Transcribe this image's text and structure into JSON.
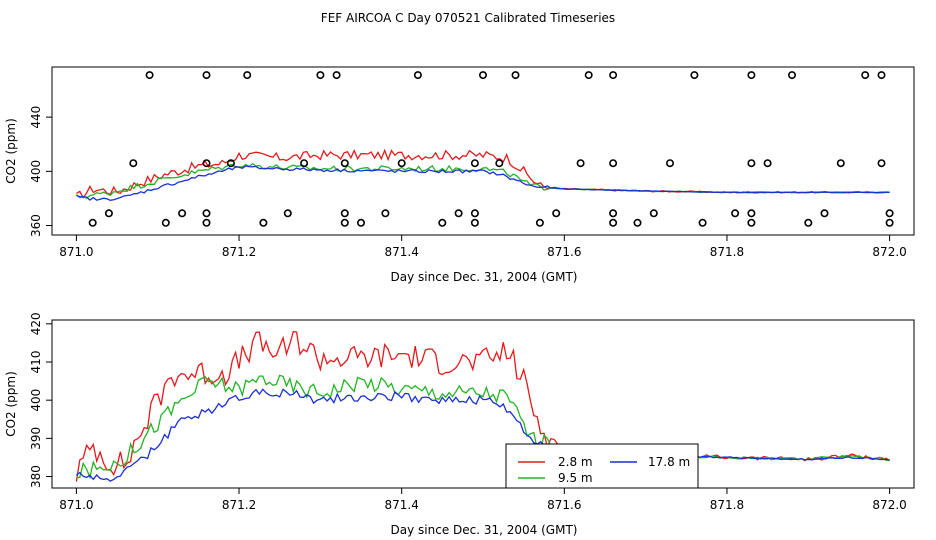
{
  "page_title": "FEF AIRCOA C  Day 070521  Calibrated Timeseries",
  "colors": {
    "red": "#e31a1c",
    "green": "#22b422",
    "blue": "#1a2fd6",
    "axis": "#000000"
  },
  "chart_data": [
    {
      "type": "line",
      "title": "FEF AIRCOA C  Day 070521  Calibrated Timeseries",
      "xlabel": "Day since Dec. 31, 2004 (GMT)",
      "ylabel": "CO2 (ppm)",
      "xlim": [
        870.97,
        872.03
      ],
      "ylim": [
        353,
        477
      ],
      "x_ticks": [
        871.0,
        871.2,
        871.4,
        871.6,
        871.8,
        872.0
      ],
      "x_tick_labels": [
        "871.0",
        "871.2",
        "871.4",
        "871.6",
        "871.8",
        "872.0"
      ],
      "y_ticks": [
        360,
        400,
        440
      ],
      "y_tick_labels": [
        "360",
        "400",
        "440"
      ],
      "series": [
        {
          "name": "2.8 m",
          "color": "#e31a1c",
          "knots": [
            [
              871.0,
              381
            ],
            [
              871.02,
              387
            ],
            [
              871.05,
              385
            ],
            [
              871.08,
              392
            ],
            [
              871.11,
              398
            ],
            [
              871.15,
              404
            ],
            [
              871.18,
              406
            ],
            [
              871.2,
              412
            ],
            [
              871.25,
              410
            ],
            [
              871.3,
              412
            ],
            [
              871.4,
              412
            ],
            [
              871.5,
              412
            ],
            [
              871.53,
              410
            ],
            [
              871.55,
              400
            ],
            [
              871.57,
              389
            ],
            [
              871.6,
              387
            ],
            [
              871.7,
              385.5
            ],
            [
              871.8,
              384.5
            ],
            [
              872.0,
              384.5
            ]
          ],
          "noise": 3.5
        },
        {
          "name": "9.5 m",
          "color": "#22b422",
          "knots": [
            [
              871.0,
              381
            ],
            [
              871.04,
              384
            ],
            [
              871.08,
              390
            ],
            [
              871.12,
              396
            ],
            [
              871.16,
              401
            ],
            [
              871.2,
              405
            ],
            [
              871.25,
              403
            ],
            [
              871.3,
              402
            ],
            [
              871.4,
              402
            ],
            [
              871.5,
              402
            ],
            [
              871.53,
              399
            ],
            [
              871.56,
              389
            ],
            [
              871.6,
              387
            ],
            [
              871.7,
              385.5
            ],
            [
              871.8,
              384.5
            ],
            [
              872.0,
              384.5
            ]
          ],
          "noise": 2.2
        },
        {
          "name": "17.8 m",
          "color": "#1a2fd6",
          "knots": [
            [
              871.0,
              381
            ],
            [
              871.03,
              379
            ],
            [
              871.06,
              381
            ],
            [
              871.1,
              388
            ],
            [
              871.15,
              396
            ],
            [
              871.2,
              403
            ],
            [
              871.25,
              402
            ],
            [
              871.3,
              401
            ],
            [
              871.4,
              400
            ],
            [
              871.5,
              400
            ],
            [
              871.52,
              398
            ],
            [
              871.56,
              389
            ],
            [
              871.6,
              387
            ],
            [
              871.7,
              385.5
            ],
            [
              871.8,
              384.5
            ],
            [
              872.0,
              384.5
            ]
          ],
          "noise": 1.2
        }
      ],
      "markers": {
        "type": "scatter",
        "shape": "open-circle",
        "points": [
          [
            871.09,
            471
          ],
          [
            871.16,
            471
          ],
          [
            871.21,
            471
          ],
          [
            871.3,
            471
          ],
          [
            871.32,
            471
          ],
          [
            871.42,
            471
          ],
          [
            871.5,
            471
          ],
          [
            871.54,
            471
          ],
          [
            871.63,
            471
          ],
          [
            871.66,
            471
          ],
          [
            871.76,
            471
          ],
          [
            871.83,
            471
          ],
          [
            871.88,
            471
          ],
          [
            871.97,
            471
          ],
          [
            871.99,
            471
          ],
          [
            871.07,
            406
          ],
          [
            871.16,
            406
          ],
          [
            871.19,
            406
          ],
          [
            871.28,
            406
          ],
          [
            871.33,
            406
          ],
          [
            871.4,
            406
          ],
          [
            871.49,
            406
          ],
          [
            871.52,
            406
          ],
          [
            871.62,
            406
          ],
          [
            871.66,
            406
          ],
          [
            871.73,
            406
          ],
          [
            871.83,
            406
          ],
          [
            871.85,
            406
          ],
          [
            871.94,
            406
          ],
          [
            871.99,
            406
          ],
          [
            871.04,
            369
          ],
          [
            871.13,
            369
          ],
          [
            871.16,
            369
          ],
          [
            871.26,
            369
          ],
          [
            871.33,
            369
          ],
          [
            871.38,
            369
          ],
          [
            871.47,
            369
          ],
          [
            871.49,
            369
          ],
          [
            871.59,
            369
          ],
          [
            871.66,
            369
          ],
          [
            871.71,
            369
          ],
          [
            871.81,
            369
          ],
          [
            871.83,
            369
          ],
          [
            871.92,
            369
          ],
          [
            872.0,
            369
          ],
          [
            871.02,
            362
          ],
          [
            871.11,
            362
          ],
          [
            871.16,
            362
          ],
          [
            871.23,
            362
          ],
          [
            871.33,
            362
          ],
          [
            871.35,
            362
          ],
          [
            871.45,
            362
          ],
          [
            871.49,
            362
          ],
          [
            871.57,
            362
          ],
          [
            871.66,
            362
          ],
          [
            871.69,
            362
          ],
          [
            871.77,
            362
          ],
          [
            871.83,
            362
          ],
          [
            871.9,
            362
          ],
          [
            872.0,
            362
          ]
        ]
      }
    },
    {
      "type": "line",
      "xlabel": "Day since Dec. 31, 2004 (GMT)",
      "ylabel": "CO2 (ppm)",
      "xlim": [
        870.97,
        872.03
      ],
      "ylim": [
        377,
        421
      ],
      "x_ticks": [
        871.0,
        871.2,
        871.4,
        871.6,
        871.8,
        872.0
      ],
      "x_tick_labels": [
        "871.0",
        "871.2",
        "871.4",
        "871.6",
        "871.8",
        "872.0"
      ],
      "y_ticks": [
        380,
        390,
        400,
        410,
        420
      ],
      "y_tick_labels": [
        "380",
        "390",
        "400",
        "410",
        "420"
      ],
      "legend": {
        "position": "bottom-center",
        "entries": [
          {
            "label": "2.8 m",
            "color": "#e31a1c"
          },
          {
            "label": "17.8 m",
            "color": "#1a2fd6"
          },
          {
            "label": "9.5 m",
            "color": "#22b422"
          }
        ]
      },
      "series": [
        {
          "name": "2.8 m",
          "color": "#e31a1c",
          "knots": [
            [
              871.0,
              381
            ],
            [
              871.02,
              388
            ],
            [
              871.04,
              384
            ],
            [
              871.06,
              383
            ],
            [
              871.08,
              392
            ],
            [
              871.1,
              400
            ],
            [
              871.12,
              407
            ],
            [
              871.15,
              407
            ],
            [
              871.18,
              407
            ],
            [
              871.2,
              410
            ],
            [
              871.22,
              415
            ],
            [
              871.25,
              412
            ],
            [
              871.27,
              416
            ],
            [
              871.3,
              411
            ],
            [
              871.35,
              411
            ],
            [
              871.4,
              412
            ],
            [
              871.45,
              410
            ],
            [
              871.5,
              410
            ],
            [
              871.53,
              413
            ],
            [
              871.55,
              405
            ],
            [
              871.57,
              393
            ],
            [
              871.6,
              387
            ],
            [
              871.7,
              386
            ],
            [
              871.8,
              385
            ],
            [
              871.9,
              384.5
            ],
            [
              871.95,
              385.5
            ],
            [
              872.0,
              384.5
            ]
          ],
          "noise": 3.5
        },
        {
          "name": "9.5 m",
          "color": "#22b422",
          "knots": [
            [
              871.0,
              381
            ],
            [
              871.03,
              382
            ],
            [
              871.06,
              385
            ],
            [
              871.1,
              394
            ],
            [
              871.13,
              400
            ],
            [
              871.16,
              405
            ],
            [
              871.2,
              403
            ],
            [
              871.23,
              406
            ],
            [
              871.26,
              404
            ],
            [
              871.3,
              402
            ],
            [
              871.35,
              405
            ],
            [
              871.4,
              403
            ],
            [
              871.45,
              402
            ],
            [
              871.5,
              402
            ],
            [
              871.53,
              401
            ],
            [
              871.56,
              390
            ],
            [
              871.6,
              387
            ],
            [
              871.7,
              385.5
            ],
            [
              871.8,
              385
            ],
            [
              871.9,
              384.5
            ],
            [
              871.95,
              385.5
            ],
            [
              872.0,
              384.5
            ]
          ],
          "noise": 2.2
        },
        {
          "name": "17.8 m",
          "color": "#1a2fd6",
          "knots": [
            [
              871.0,
              381
            ],
            [
              871.03,
              379
            ],
            [
              871.06,
              381
            ],
            [
              871.1,
              388
            ],
            [
              871.13,
              395
            ],
            [
              871.16,
              397
            ],
            [
              871.2,
              401
            ],
            [
              871.23,
              402
            ],
            [
              871.26,
              402
            ],
            [
              871.3,
              400
            ],
            [
              871.35,
              401
            ],
            [
              871.4,
              401
            ],
            [
              871.45,
              400
            ],
            [
              871.5,
              400
            ],
            [
              871.53,
              398
            ],
            [
              871.56,
              389
            ],
            [
              871.6,
              387
            ],
            [
              871.7,
              385.5
            ],
            [
              871.8,
              385
            ],
            [
              871.9,
              384.5
            ],
            [
              871.95,
              385
            ],
            [
              872.0,
              384.5
            ]
          ],
          "noise": 1.2
        }
      ]
    }
  ]
}
